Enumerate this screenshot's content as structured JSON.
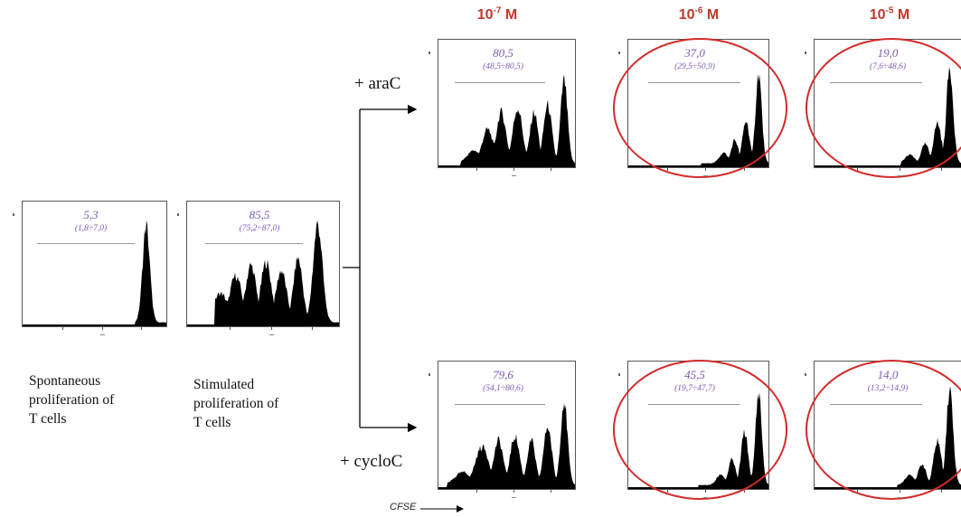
{
  "concentrations": [
    {
      "base": "10",
      "exp": "-7",
      "unit": "M"
    },
    {
      "base": "10",
      "exp": "-6",
      "unit": "M"
    },
    {
      "base": "10",
      "exp": "-5",
      "unit": "M"
    }
  ],
  "treatments": {
    "arac": "+ araC",
    "cycloc": "+ cycloC"
  },
  "captions": {
    "spontaneous": "Spontaneous\nproliferation of\nT cells",
    "stimulated": "Stimulated\nproliferation of\nT cells"
  },
  "axis_label": "CFSE",
  "chart_data": [
    {
      "type": "area",
      "panel": "spontaneous",
      "percent": "5,3",
      "range": "(1,8÷7,0)",
      "highlighted": false
    },
    {
      "type": "area",
      "panel": "stimulated",
      "percent": "85,5",
      "range": "(75,2÷87,0)",
      "highlighted": false
    },
    {
      "type": "area",
      "panel": "araC 10-7 M",
      "percent": "80,5",
      "range": "(48,5÷80,5)",
      "highlighted": false
    },
    {
      "type": "area",
      "panel": "araC 10-6 M",
      "percent": "37,0",
      "range": "(29,5÷50,9)",
      "highlighted": true
    },
    {
      "type": "area",
      "panel": "araC 10-5 M",
      "percent": "19,0",
      "range": "(7,6÷48,6)",
      "highlighted": true
    },
    {
      "type": "area",
      "panel": "cycloC 10-7 M",
      "percent": "79,6",
      "range": "(54,1÷80,6)",
      "highlighted": false
    },
    {
      "type": "area",
      "panel": "cycloC 10-6 M",
      "percent": "45,5",
      "range": "(19,7÷47,7)",
      "highlighted": true
    },
    {
      "type": "area",
      "panel": "cycloC 10-5 M",
      "percent": "14,0",
      "range": "(13,2÷14,9)",
      "highlighted": true
    }
  ],
  "colors": {
    "concentration": "#c0392b",
    "gate_text": "#7b5bb5",
    "highlight_circle": "#d42a2a",
    "histogram": "#000000"
  }
}
